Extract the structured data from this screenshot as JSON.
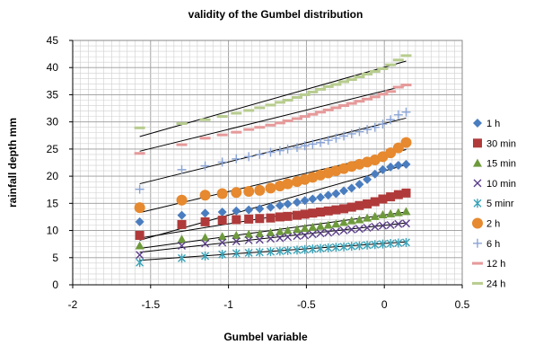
{
  "chart_data": {
    "type": "scatter",
    "title": "validity of the Gumbel distribution",
    "xlabel": "Gumbel variable",
    "ylabel": "rainfall depth mm",
    "xlim": [
      -2,
      0.5
    ],
    "ylim": [
      0,
      45
    ],
    "x_ticks": [
      "-2",
      "-1.5",
      "-1",
      "-0.5",
      "0",
      "0.5"
    ],
    "y_ticks": [
      "0",
      "5",
      "10",
      "15",
      "20",
      "25",
      "30",
      "35",
      "40",
      "45"
    ],
    "grid": true,
    "legend_position": "right",
    "x": [
      -1.57,
      -1.3,
      -1.15,
      -1.04,
      -0.95,
      -0.87,
      -0.8,
      -0.73,
      -0.67,
      -0.62,
      -0.56,
      -0.51,
      -0.46,
      -0.41,
      -0.36,
      -0.31,
      -0.26,
      -0.21,
      -0.16,
      -0.11,
      -0.06,
      -0.01,
      0.04,
      0.09,
      0.14
    ],
    "series": [
      {
        "name": "1 h",
        "marker": "diamond",
        "color": "#4a7dbf",
        "values": [
          11.6,
          12.8,
          13.2,
          13.4,
          13.6,
          13.8,
          14.0,
          14.3,
          14.6,
          14.9,
          15.2,
          15.5,
          15.8,
          16.1,
          16.5,
          16.8,
          17.3,
          17.8,
          18.5,
          19.4,
          20.4,
          21.2,
          21.7,
          22.0,
          22.2
        ],
        "fit": [
          8.2,
          22.1
        ]
      },
      {
        "name": "30 min",
        "marker": "square",
        "color": "#b03a3a",
        "values": [
          9.1,
          11.1,
          11.6,
          11.9,
          12.0,
          12.1,
          12.2,
          12.3,
          12.5,
          12.6,
          12.8,
          13.0,
          13.2,
          13.4,
          13.6,
          13.8,
          14.0,
          14.3,
          14.6,
          14.9,
          15.3,
          15.8,
          16.2,
          16.6,
          16.9
        ],
        "fit": [
          8.6,
          16.5
        ]
      },
      {
        "name": "15 min",
        "marker": "triangle",
        "color": "#6e9a3c",
        "values": [
          7.2,
          8.4,
          8.7,
          8.9,
          9.1,
          9.3,
          9.4,
          9.6,
          9.8,
          10.0,
          10.2,
          10.4,
          10.6,
          10.8,
          11.0,
          11.2,
          11.5,
          11.8,
          12.0,
          12.3,
          12.6,
          12.9,
          13.1,
          13.3,
          13.5
        ],
        "fit": [
          6.7,
          13.4
        ]
      },
      {
        "name": "10 min",
        "marker": "x",
        "color": "#5b3f8a",
        "values": [
          5.5,
          7.2,
          7.6,
          7.8,
          8.0,
          8.2,
          8.3,
          8.5,
          8.6,
          8.8,
          9.0,
          9.1,
          9.3,
          9.5,
          9.6,
          9.8,
          10.0,
          10.2,
          10.3,
          10.5,
          10.7,
          10.9,
          11.0,
          11.2,
          11.3
        ],
        "fit": [
          6.0,
          11.4
        ]
      },
      {
        "name": "5 minr",
        "marker": "star",
        "color": "#3aa3b8",
        "values": [
          4.1,
          4.9,
          5.3,
          5.6,
          5.8,
          5.9,
          6.0,
          6.1,
          6.2,
          6.3,
          6.4,
          6.5,
          6.6,
          6.7,
          6.8,
          6.9,
          7.0,
          7.1,
          7.2,
          7.3,
          7.4,
          7.5,
          7.6,
          7.7,
          7.8
        ],
        "fit": [
          4.5,
          7.9
        ]
      },
      {
        "name": "2 h",
        "marker": "circle",
        "color": "#e6892f",
        "values": [
          14.2,
          15.6,
          16.5,
          16.8,
          17.0,
          17.2,
          17.4,
          17.8,
          18.2,
          18.6,
          19.0,
          19.4,
          19.8,
          20.2,
          20.6,
          21.0,
          21.4,
          21.8,
          22.2,
          22.6,
          23.0,
          23.6,
          24.3,
          25.2,
          26.2
        ],
        "fit": [
          13.3,
          24.9
        ]
      },
      {
        "name": "6 h",
        "marker": "plus",
        "color": "#8aa4d6",
        "values": [
          17.6,
          21.2,
          21.9,
          22.6,
          23.2,
          23.6,
          24.0,
          24.4,
          24.7,
          25.0,
          25.3,
          25.6,
          25.9,
          26.2,
          26.6,
          27.0,
          27.4,
          27.8,
          28.2,
          28.6,
          29.0,
          29.6,
          30.4,
          31.3,
          31.8
        ],
        "fit": [
          18.6,
          30.7
        ]
      },
      {
        "name": "12 h",
        "marker": "dash",
        "color": "#e69a9a",
        "values": [
          24.2,
          25.8,
          27.0,
          27.6,
          28.1,
          28.6,
          29.0,
          29.4,
          29.8,
          30.2,
          30.6,
          31.0,
          31.4,
          31.8,
          32.2,
          32.6,
          33.0,
          33.4,
          33.8,
          34.2,
          34.6,
          35.1,
          35.6,
          36.4,
          36.8
        ],
        "fit": [
          24.6,
          36.7
        ]
      },
      {
        "name": "24 h",
        "marker": "dash",
        "color": "#b7cc8e",
        "values": [
          28.9,
          29.7,
          30.4,
          31.0,
          31.6,
          32.1,
          32.6,
          33.1,
          33.6,
          34.0,
          34.5,
          35.0,
          35.5,
          36.0,
          36.5,
          36.9,
          37.4,
          37.8,
          38.3,
          38.8,
          39.3,
          39.8,
          40.5,
          41.4,
          42.2
        ],
        "fit": [
          27.3,
          41.2
        ]
      }
    ]
  }
}
